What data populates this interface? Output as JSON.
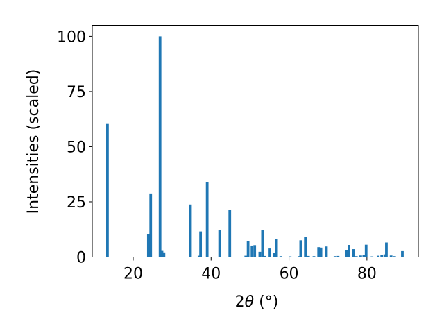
{
  "chart_data": {
    "type": "bar",
    "xlabel_prefix": "2",
    "xlabel_theta": "θ",
    "xlabel_suffix": " (°)",
    "ylabel": "Intensities (scaled)",
    "xlim": [
      9.5,
      93.2
    ],
    "ylim": [
      0,
      105
    ],
    "xticks": [
      20,
      40,
      60,
      80
    ],
    "yticks": [
      0,
      25,
      50,
      75,
      100
    ],
    "bar_color": "#1f77b4",
    "grid": false,
    "x": [
      13.4,
      23.9,
      24.5,
      26.9,
      27.4,
      27.9,
      34.7,
      36.9,
      37.3,
      39.0,
      42.2,
      44.8,
      48.9,
      49.5,
      50.5,
      51.2,
      52.5,
      53.2,
      53.8,
      55.1,
      56.2,
      56.8,
      57.9,
      60.3,
      62.6,
      63.0,
      64.2,
      65.0,
      66.4,
      67.6,
      68.2,
      69.6,
      71.8,
      72.6,
      74.7,
      75.4,
      76.5,
      77.3,
      78.4,
      79.2,
      79.8,
      81.3,
      82.9,
      83.8,
      84.6,
      85.0,
      86.2,
      87.1,
      89.1
    ],
    "y": [
      60.3,
      10.5,
      28.8,
      100.0,
      2.8,
      2.1,
      23.8,
      0.6,
      11.6,
      33.9,
      12.1,
      21.5,
      0.6,
      7.1,
      5.2,
      5.4,
      2.4,
      12.1,
      0.5,
      3.9,
      1.9,
      8.1,
      0.4,
      0.3,
      0.4,
      7.6,
      9.2,
      0.5,
      0.4,
      4.5,
      4.3,
      4.8,
      0.4,
      0.5,
      3.0,
      5.5,
      3.6,
      0.4,
      0.7,
      0.8,
      5.6,
      0.3,
      0.6,
      1.1,
      1.2,
      6.6,
      0.7,
      0.4,
      2.7
    ]
  }
}
